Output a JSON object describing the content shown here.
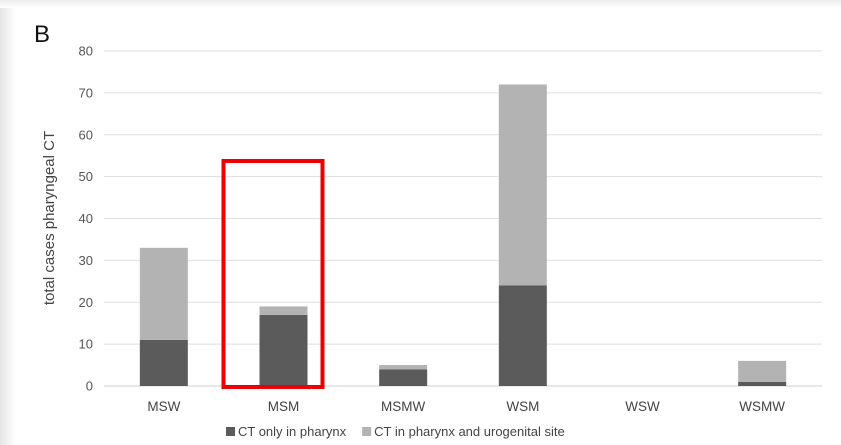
{
  "panel_label": "B",
  "colors": {
    "series_1": "#5b5b5b",
    "series_2": "#b3b3b3",
    "gridline": "#dedede",
    "highlight": "#ee0000"
  },
  "chart_data": {
    "type": "bar",
    "stacked": true,
    "title": "",
    "xlabel": "",
    "ylabel": "total  cases pharyngeal CT",
    "ylim": [
      0,
      80
    ],
    "yticks": [
      "0",
      "10",
      "20",
      "30",
      "40",
      "50",
      "60",
      "70",
      "80"
    ],
    "categories": [
      "MSW",
      "MSM",
      "MSMW",
      "WSM",
      "WSW",
      "WSMW"
    ],
    "series": [
      {
        "name": "CT only in pharynx",
        "values": [
          11,
          17,
          4,
          24,
          0,
          1
        ]
      },
      {
        "name": "CT in pharynx and urogenital site",
        "values": [
          22,
          2,
          1,
          48,
          0,
          5
        ]
      }
    ],
    "grid": true,
    "legend_position": "bottom",
    "highlighted_category": "MSM"
  }
}
